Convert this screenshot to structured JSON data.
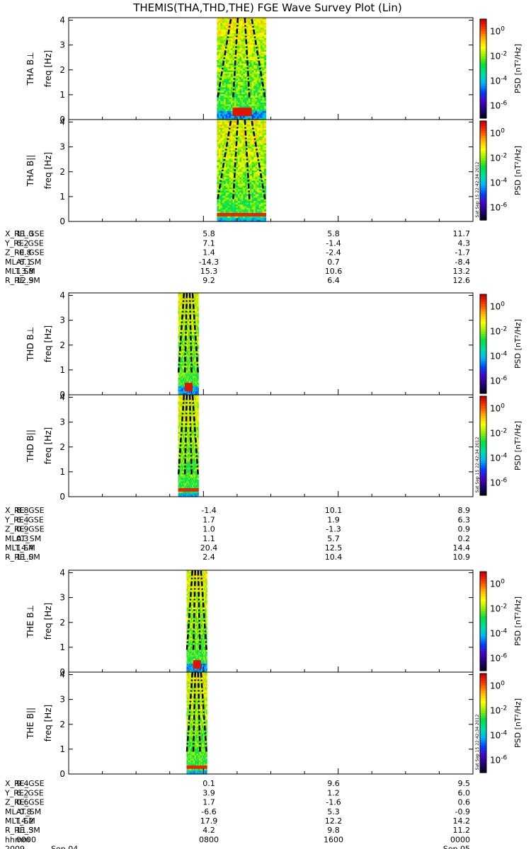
{
  "chart_data": {
    "type": "heatmap",
    "title": "THEMIS(THA,THD,THE) FGE Wave Survey Plot (Lin)",
    "ytick_labels": [
      "0",
      "1",
      "2",
      "3",
      "4"
    ],
    "ylim": [
      0,
      4.1
    ],
    "colorbar": {
      "label": "PSD [nT²/Hz]",
      "ticks": [
        {
          "base": "10",
          "exp": "0"
        },
        {
          "base": "10",
          "exp": "-2"
        },
        {
          "base": "10",
          "exp": "-4"
        },
        {
          "base": "10",
          "exp": "-6"
        }
      ],
      "log_range": [
        -7,
        1
      ]
    },
    "stamp": "Sat Sep 15 22:42:34 2012",
    "colors": {
      "spectrum": [
        "#000000",
        "#1a006e",
        "#4a00c8",
        "#0040ff",
        "#00b4ff",
        "#00e0a0",
        "#00e040",
        "#90f000",
        "#ffff00",
        "#ffb000",
        "#ff4000",
        "#d00000"
      ]
    },
    "probes": [
      {
        "name": "THA",
        "panels": [
          {
            "ylabel": "THA B⊥",
            "unit": "freq [Hz]",
            "component": "perp",
            "data_window_hours": [
              8.8,
              11.7
            ]
          },
          {
            "ylabel": "THA B||",
            "unit": "freq [Hz]",
            "component": "par",
            "data_window_hours": [
              8.8,
              11.7
            ]
          }
        ],
        "ephemeris": [
          {
            "label": "X_RE_GSE",
            "values": [
              "11.3",
              "5.8",
              "5.8",
              "11.7"
            ]
          },
          {
            "label": "Y_RE_GSE",
            "values": [
              "6.2",
              "7.1",
              "-1.4",
              "4.3"
            ]
          },
          {
            "label": "Z_RE_GSE",
            "values": [
              "-0.8",
              "1.4",
              "-2.4",
              "-1.7"
            ]
          },
          {
            "label": "MLAT_SM",
            "values": [
              "-6.1",
              "-14.3",
              "0.7",
              "-8.4"
            ]
          },
          {
            "label": "MLT_SM",
            "values": [
              "13.8",
              "15.3",
              "10.6",
              "13.2"
            ]
          },
          {
            "label": "R_RE_SM",
            "values": [
              "12.9",
              "9.2",
              "6.4",
              "12.6"
            ]
          }
        ]
      },
      {
        "name": "THD",
        "panels": [
          {
            "ylabel": "THD B⊥",
            "unit": "freq [Hz]",
            "component": "perp",
            "data_window_hours": [
              6.5,
              7.7
            ]
          },
          {
            "ylabel": "THD B||",
            "unit": "freq [Hz]",
            "component": "par",
            "data_window_hours": [
              6.5,
              7.7
            ]
          }
        ],
        "ephemeris": [
          {
            "label": "X_RE_GSE",
            "values": [
              "8.8",
              "-1.4",
              "10.1",
              "8.9"
            ]
          },
          {
            "label": "Y_RE_GSE",
            "values": [
              "6.4",
              "1.7",
              "1.9",
              "6.3"
            ]
          },
          {
            "label": "Z_RE_GSE",
            "values": [
              "0.9",
              "1.0",
              "-1.3",
              "0.9"
            ]
          },
          {
            "label": "MLAT_SM",
            "values": [
              "0.3",
              "1.1",
              "5.7",
              "0.2"
            ]
          },
          {
            "label": "MLT_SM",
            "values": [
              "14.4",
              "20.4",
              "12.5",
              "14.4"
            ]
          },
          {
            "label": "R_RE_SM",
            "values": [
              "11.0",
              "2.4",
              "10.4",
              "10.9"
            ]
          }
        ]
      },
      {
        "name": "THE",
        "panels": [
          {
            "ylabel": "THE B⊥",
            "unit": "freq [Hz]",
            "component": "perp",
            "data_window_hours": [
              7.0,
              8.2
            ]
          },
          {
            "ylabel": "THE B||",
            "unit": "freq [Hz]",
            "component": "par",
            "data_window_hours": [
              7.0,
              8.2
            ]
          }
        ],
        "ephemeris": [
          {
            "label": "X_RE_GSE",
            "values": [
              "9.4",
              "0.1",
              "9.6",
              "9.5"
            ]
          },
          {
            "label": "Y_RE_GSE",
            "values": [
              "6.2",
              "3.9",
              "1.2",
              "6.0"
            ]
          },
          {
            "label": "Z_RE_GSE",
            "values": [
              "0.6",
              "1.7",
              "-1.6",
              "0.6"
            ]
          },
          {
            "label": "MLAT_SM",
            "values": [
              "-0.8",
              "-6.6",
              "5.3",
              "-0.9"
            ]
          },
          {
            "label": "MLT_SM",
            "values": [
              "14.2",
              "17.9",
              "12.2",
              "14.2"
            ]
          },
          {
            "label": "R_RE_SM",
            "values": [
              "11.3",
              "4.2",
              "9.8",
              "11.2"
            ]
          }
        ],
        "time_rows": [
          {
            "label": "hhmm",
            "values": [
              "0000",
              "0800",
              "1600",
              "0000"
            ]
          },
          {
            "label": "2009",
            "values": [
              "Sep 04",
              "",
              "",
              "Sep 05"
            ]
          }
        ]
      }
    ]
  }
}
